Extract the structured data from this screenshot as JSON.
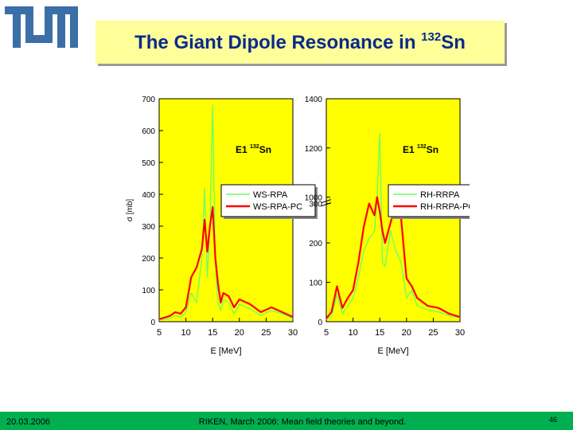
{
  "logo": {
    "text": "TUM"
  },
  "slide": {
    "title_prefix": "The Giant Dipole Resonance in ",
    "title_sup": "132",
    "title_suffix": "Sn"
  },
  "footer": {
    "date": "20.03.2006",
    "center": "RIKEN, March 2006: Mean field theories and beyond.",
    "page": "46"
  },
  "colors": {
    "plot_bg": "#ffff00",
    "series1": "#66ff66",
    "series2": "#ff0000",
    "footer": "#00b050",
    "title_box": "#ffff99",
    "title_text": "#0a2a8a"
  },
  "chart_data": [
    {
      "type": "line",
      "annotation_main": "E1",
      "annotation_sup": "132",
      "annotation_element": "Sn",
      "xlabel": "E [MeV]",
      "ylabel": "σ [mb]",
      "xlim": [
        5,
        30
      ],
      "ylim": [
        0,
        700
      ],
      "xticks": [
        5,
        10,
        15,
        20,
        25,
        30
      ],
      "yticks": [
        0,
        100,
        200,
        300,
        400,
        500,
        600,
        700
      ],
      "legend_position": "center-right",
      "series": [
        {
          "name": "WS-RPA",
          "color": "#66ff66",
          "x": [
            5,
            7,
            8,
            9,
            10,
            11,
            12,
            13,
            13.5,
            14,
            14.5,
            15,
            15.5,
            16,
            16.5,
            17,
            18,
            19,
            20,
            22,
            24,
            26,
            28,
            30
          ],
          "y": [
            5,
            10,
            20,
            15,
            30,
            90,
            60,
            200,
            420,
            140,
            300,
            680,
            180,
            60,
            35,
            70,
            60,
            25,
            55,
            40,
            20,
            35,
            25,
            10
          ]
        },
        {
          "name": "WS-RPA-PC",
          "color": "#ff0000",
          "x": [
            5,
            7,
            8,
            9,
            10,
            11,
            12,
            13,
            13.5,
            14,
            14.5,
            15,
            15.5,
            16,
            16.5,
            17,
            18,
            19,
            20,
            22,
            24,
            26,
            28,
            30
          ],
          "y": [
            8,
            18,
            30,
            25,
            45,
            140,
            170,
            230,
            320,
            220,
            300,
            360,
            200,
            120,
            60,
            90,
            80,
            45,
            70,
            55,
            30,
            45,
            30,
            15
          ]
        }
      ]
    },
    {
      "type": "line",
      "annotation_main": "E1",
      "annotation_sup": "132",
      "annotation_element": "Sn",
      "xlabel": "E [MeV]",
      "ylabel": "",
      "xlim": [
        5,
        30
      ],
      "ylim": [
        0,
        1400
      ],
      "yaxis_break": true,
      "xticks": [
        5,
        10,
        15,
        20,
        25,
        30
      ],
      "yticks": [
        0,
        100,
        200,
        300,
        1000,
        1200,
        1400
      ],
      "legend_position": "center-right",
      "series": [
        {
          "name": "RH-RRPA",
          "color": "#66ff66",
          "x": [
            5,
            6,
            7,
            8,
            9,
            10,
            11,
            12,
            13,
            14,
            14.5,
            15,
            15.5,
            16,
            17,
            18,
            19,
            20,
            21,
            22,
            24,
            26,
            28,
            30
          ],
          "y": [
            5,
            15,
            70,
            20,
            40,
            60,
            110,
            180,
            210,
            230,
            340,
            1260,
            150,
            140,
            230,
            180,
            150,
            60,
            80,
            40,
            30,
            25,
            15,
            10
          ]
        },
        {
          "name": "RH-RRPA-PC",
          "color": "#ff0000",
          "x": [
            5,
            6,
            7,
            8,
            9,
            10,
            11,
            12,
            13,
            14,
            14.5,
            15,
            15.5,
            16,
            17,
            18,
            19,
            20,
            21,
            22,
            24,
            26,
            28,
            30
          ],
          "y": [
            8,
            25,
            90,
            35,
            60,
            80,
            150,
            240,
            300,
            270,
            320,
            280,
            230,
            200,
            250,
            300,
            260,
            110,
            90,
            60,
            40,
            35,
            20,
            12
          ]
        }
      ]
    }
  ]
}
